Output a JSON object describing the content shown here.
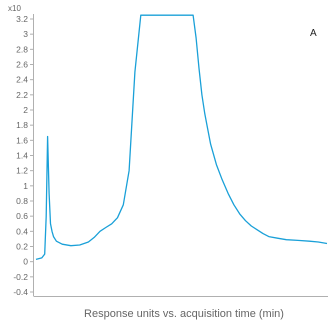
{
  "chart_data": {
    "type": "line",
    "title": "",
    "xlabel": "Response units vs. acquisition time (min)",
    "ylabel": "",
    "y_exponent_label": "x10",
    "panel_label": "A",
    "ylim": [
      -0.45,
      3.25
    ],
    "xlim": [
      0,
      1
    ],
    "y_ticks": [
      "3.2",
      "3",
      "2.8",
      "2.6",
      "2.4",
      "2.2",
      "2",
      "1.8",
      "1.6",
      "1.4",
      "1.2",
      "1",
      "0.8",
      "0.6",
      "0.4",
      "0.2",
      "0",
      "-0.2",
      "-0.4"
    ],
    "x_tick_labels": [],
    "grid": false,
    "line_color": "#1aa0d8",
    "series": [
      {
        "x": [
          0.0,
          0.02,
          0.03,
          0.035,
          0.04,
          0.045,
          0.05,
          0.055,
          0.06,
          0.07,
          0.09,
          0.12,
          0.15,
          0.18,
          0.2,
          0.22,
          0.24,
          0.26,
          0.28,
          0.3,
          0.32,
          0.34,
          0.36,
          0.38,
          0.4,
          0.42,
          0.44,
          0.45,
          0.46,
          0.47,
          0.48,
          0.49,
          0.5,
          0.52,
          0.54,
          0.55,
          0.56,
          0.57,
          0.58,
          0.59,
          0.6,
          0.62,
          0.64,
          0.66,
          0.68,
          0.7,
          0.72,
          0.74,
          0.76,
          0.78,
          0.8,
          0.83,
          0.86,
          0.9,
          0.94,
          0.97,
          1.0
        ],
        "y": [
          0.03,
          0.05,
          0.1,
          0.6,
          1.65,
          0.9,
          0.5,
          0.4,
          0.33,
          0.27,
          0.23,
          0.21,
          0.22,
          0.26,
          0.32,
          0.4,
          0.45,
          0.5,
          0.58,
          0.75,
          1.2,
          2.5,
          3.25,
          3.25,
          3.25,
          3.25,
          3.25,
          3.25,
          3.25,
          3.25,
          3.25,
          3.25,
          3.25,
          3.25,
          3.25,
          2.95,
          2.55,
          2.2,
          1.95,
          1.75,
          1.55,
          1.28,
          1.08,
          0.9,
          0.75,
          0.63,
          0.54,
          0.47,
          0.42,
          0.37,
          0.33,
          0.31,
          0.29,
          0.28,
          0.27,
          0.26,
          0.24
        ]
      }
    ]
  }
}
